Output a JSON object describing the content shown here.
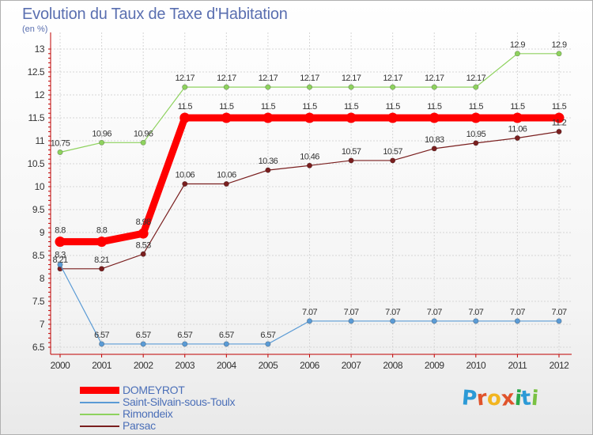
{
  "title": "Evolution du Taux de Taxe d'Habitation",
  "unit_label": "(en %)",
  "logo": {
    "letters": [
      "P",
      "r",
      "o",
      "x",
      "i",
      "t",
      "i"
    ],
    "colors": [
      "#2c9ad6",
      "#e0532b",
      "#f2b520",
      "#e0532b",
      "#2aa84a",
      "#2c9ad6",
      "#7ac143"
    ]
  },
  "chart_data": {
    "type": "line",
    "title": "Evolution du Taux de Taxe d'Habitation",
    "ylabel": "(en %)",
    "xlabel": "",
    "x": [
      "2000",
      "2001",
      "2002",
      "2003",
      "2004",
      "2005",
      "2006",
      "2007",
      "2008",
      "2009",
      "2010",
      "2011",
      "2012"
    ],
    "ylim": [
      6.5,
      13
    ],
    "yticks": [
      "6.5",
      "7",
      "7.5",
      "8",
      "8.5",
      "9",
      "9.5",
      "10",
      "10.5",
      "11",
      "11.5",
      "12",
      "12.5",
      "13"
    ],
    "grid": true,
    "legend_position": "bottom-left",
    "series": [
      {
        "name": "DOMEYROT",
        "color": "#ff0000",
        "values": [
          8.8,
          8.8,
          8.98,
          11.5,
          11.5,
          11.5,
          11.5,
          11.5,
          11.5,
          11.5,
          11.5,
          11.5,
          11.5
        ],
        "labels": [
          "8.8",
          "8.8",
          "8.98",
          "11.5",
          "11.5",
          "11.5",
          "11.5",
          "11.5",
          "11.5",
          "11.5",
          "11.5",
          "11.5",
          "11.5"
        ]
      },
      {
        "name": "Saint-Silvain-sous-Toulx",
        "color": "#5b9bd5",
        "values": [
          8.3,
          6.57,
          6.57,
          6.57,
          6.57,
          6.57,
          7.07,
          7.07,
          7.07,
          7.07,
          7.07,
          7.07,
          7.07
        ],
        "labels": [
          "8.3",
          "6.57",
          "6.57",
          "6.57",
          "6.57",
          "6.57",
          "7.07",
          "7.07",
          "7.07",
          "7.07",
          "7.07",
          "7.07",
          "7.07"
        ]
      },
      {
        "name": "Rimondeix",
        "color": "#8ed25e",
        "values": [
          10.75,
          10.96,
          10.96,
          12.17,
          12.17,
          12.17,
          12.17,
          12.17,
          12.17,
          12.17,
          12.17,
          12.9,
          12.9
        ],
        "labels": [
          "10.75",
          "10.96",
          "10.96",
          "12.17",
          "12.17",
          "12.17",
          "12.17",
          "12.17",
          "12.17",
          "12.17",
          "12.17",
          "12.9",
          "12.9"
        ]
      },
      {
        "name": "Parsac",
        "color": "#7a1f1f",
        "values": [
          8.21,
          8.21,
          8.53,
          10.06,
          10.06,
          10.36,
          10.46,
          10.57,
          10.57,
          10.83,
          10.95,
          11.06,
          11.2
        ],
        "labels": [
          "8.21",
          "8.21",
          "8.53",
          "10.06",
          "10.06",
          "10.36",
          "10.46",
          "10.57",
          "10.57",
          "10.83",
          "10.95",
          "11.06",
          "11.2"
        ]
      }
    ]
  }
}
